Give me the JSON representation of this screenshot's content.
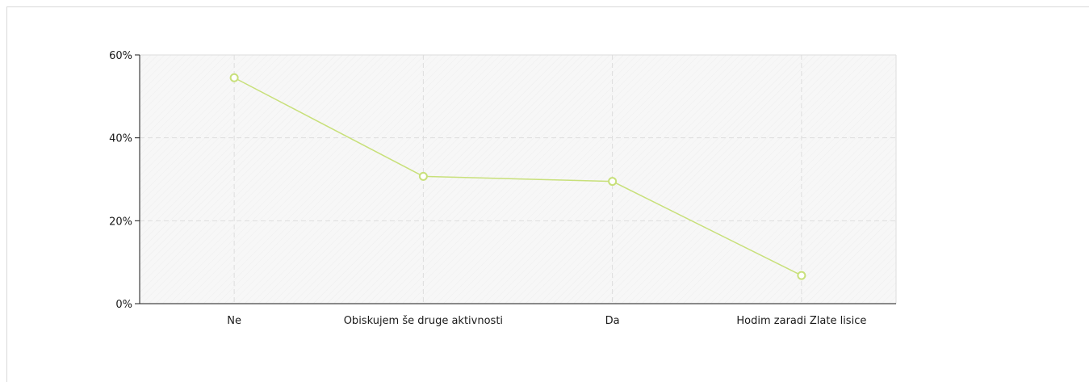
{
  "chart_data": {
    "type": "line",
    "categories": [
      "Ne",
      "Obiskujem še druge aktivnosti",
      "Da",
      "Hodim zaradi Zlate lisice"
    ],
    "series": [
      {
        "values": [
          54.5,
          30.7,
          29.5,
          6.8
        ]
      }
    ],
    "yticks": [
      "0%",
      "20%",
      "40%",
      "60%"
    ],
    "ylim": [
      0,
      60
    ],
    "grid": true,
    "legend": "none",
    "colors": {
      "line": "#c8e07a",
      "marker_fill": "#ffffff",
      "marker_stroke": "#c8e07a",
      "axis": "#1a1a1a",
      "grid": "#dddddd",
      "plot_bg": "#f7f7f7",
      "plot_hatch": "#eeeeee"
    }
  }
}
